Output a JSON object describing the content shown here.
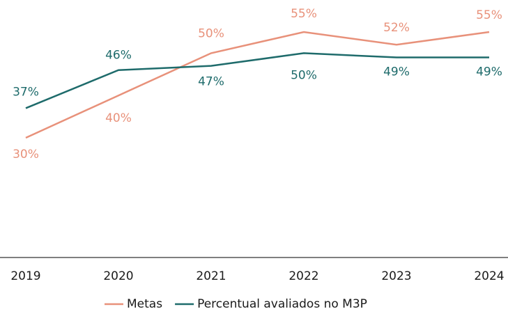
{
  "chart_data": {
    "type": "line",
    "categories": [
      "2019",
      "2020",
      "2021",
      "2022",
      "2023",
      "2024"
    ],
    "series": [
      {
        "name": "Metas",
        "color": "#e8917a",
        "values": [
          30,
          40,
          50,
          55,
          52,
          55
        ],
        "value_labels": [
          "30%",
          "40%",
          "50%",
          "55%",
          "52%",
          "55%"
        ]
      },
      {
        "name": "Percentual avaliados no M3P",
        "color": "#1e6b6b",
        "values": [
          37,
          46,
          47,
          50,
          49,
          49
        ],
        "value_labels": [
          "37%",
          "46%",
          "47%",
          "50%",
          "49%",
          "49%"
        ]
      }
    ],
    "ylim": [
      0,
      60
    ]
  }
}
